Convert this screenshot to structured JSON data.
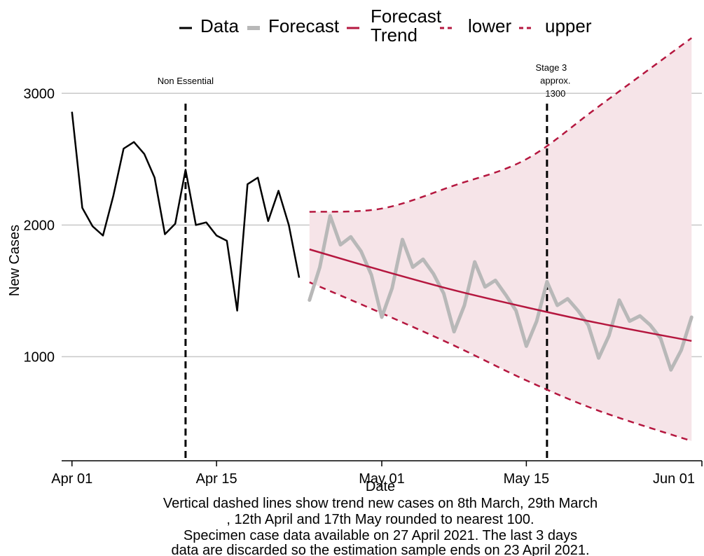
{
  "chart_data": {
    "type": "line",
    "title": "",
    "xlabel": "Date",
    "ylabel": "New Cases",
    "x_range": [
      "2021-03-31",
      "2021-06-01"
    ],
    "ylim": [
      210,
      3230
    ],
    "x_ticks": [
      {
        "date": "2021-04-01",
        "label": "Apr 01"
      },
      {
        "date": "2021-04-15",
        "label": "Apr 15"
      },
      {
        "date": "2021-05-01",
        "label": "May 01"
      },
      {
        "date": "2021-05-15",
        "label": "May 15"
      },
      {
        "date": "2021-06-01",
        "label": "Jun 01"
      }
    ],
    "y_ticks": [
      1000,
      2000,
      3000
    ],
    "grid": "horizontal",
    "legend_position": "top",
    "legend": [
      {
        "label": "Data",
        "line1": "Data",
        "line2": "",
        "style": "solid",
        "color": "#000000"
      },
      {
        "label": "Forecast",
        "line1": "Forecast",
        "line2": "",
        "style": "solid-thick",
        "color": "#b8b8b8"
      },
      {
        "label": "Forecast Trend",
        "line1": "Forecast",
        "line2": "Trend",
        "style": "solid",
        "color": "#b5173f"
      },
      {
        "label": "lower",
        "line1": "lower",
        "line2": "",
        "style": "dashed",
        "color": "#b5173f"
      },
      {
        "label": "upper",
        "line1": "upper",
        "line2": "",
        "style": "dashed",
        "color": "#b5173f"
      }
    ],
    "colors": {
      "data": "#000000",
      "forecast": "#b8b8b8",
      "trend": "#b5173f",
      "band": "#f6e4e8",
      "vline": "#000000",
      "grid": "#c8c8c8"
    },
    "vlines": [
      {
        "date": "2021-04-12",
        "label_lines": [
          "Non Essential"
        ]
      },
      {
        "date": "2021-05-17",
        "label_lines": [
          "Stage 3",
          "approx.",
          "1300"
        ]
      }
    ],
    "series": [
      {
        "name": "Data",
        "x": [
          "2021-04-01",
          "2021-04-02",
          "2021-04-03",
          "2021-04-04",
          "2021-04-05",
          "2021-04-06",
          "2021-04-07",
          "2021-04-08",
          "2021-04-09",
          "2021-04-10",
          "2021-04-11",
          "2021-04-12",
          "2021-04-13",
          "2021-04-14",
          "2021-04-15",
          "2021-04-16",
          "2021-04-17",
          "2021-04-18",
          "2021-04-19",
          "2021-04-20",
          "2021-04-21",
          "2021-04-22",
          "2021-04-23"
        ],
        "y": [
          2860,
          2130,
          1990,
          1920,
          2220,
          2580,
          2630,
          2540,
          2360,
          1930,
          2010,
          2420,
          2000,
          2020,
          1920,
          1880,
          1350,
          2310,
          2360,
          2030,
          2260,
          2000,
          1600
        ]
      },
      {
        "name": "Forecast",
        "x": [
          "2021-04-24",
          "2021-04-25",
          "2021-04-26",
          "2021-04-27",
          "2021-04-28",
          "2021-04-29",
          "2021-04-30",
          "2021-05-01",
          "2021-05-02",
          "2021-05-03",
          "2021-05-04",
          "2021-05-05",
          "2021-05-06",
          "2021-05-07",
          "2021-05-08",
          "2021-05-09",
          "2021-05-10",
          "2021-05-11",
          "2021-05-12",
          "2021-05-13",
          "2021-05-14",
          "2021-05-15",
          "2021-05-16",
          "2021-05-17",
          "2021-05-18",
          "2021-05-19",
          "2021-05-20",
          "2021-05-21",
          "2021-05-22",
          "2021-05-23",
          "2021-05-24",
          "2021-05-25",
          "2021-05-26",
          "2021-05-27",
          "2021-05-28",
          "2021-05-29",
          "2021-05-30",
          "2021-05-31"
        ],
        "y": [
          1430,
          1680,
          2070,
          1850,
          1910,
          1800,
          1620,
          1300,
          1520,
          1890,
          1680,
          1740,
          1630,
          1480,
          1190,
          1390,
          1720,
          1530,
          1580,
          1470,
          1350,
          1080,
          1270,
          1570,
          1390,
          1440,
          1350,
          1240,
          990,
          1160,
          1430,
          1270,
          1310,
          1240,
          1140,
          900,
          1050,
          1300
        ]
      },
      {
        "name": "Forecast Trend",
        "x": [
          "2021-04-24",
          "2021-05-01",
          "2021-05-08",
          "2021-05-15",
          "2021-05-22",
          "2021-05-31"
        ],
        "y": [
          1815,
          1655,
          1505,
          1375,
          1255,
          1120
        ]
      },
      {
        "name": "lower",
        "x": [
          "2021-04-24",
          "2021-05-01",
          "2021-05-08",
          "2021-05-15",
          "2021-05-22",
          "2021-05-31"
        ],
        "y": [
          1565,
          1330,
          1085,
          820,
          590,
          360
        ]
      },
      {
        "name": "upper",
        "x": [
          "2021-04-24",
          "2021-05-01",
          "2021-05-08",
          "2021-05-15",
          "2021-05-22",
          "2021-05-31"
        ],
        "y": [
          2100,
          2125,
          2300,
          2500,
          2900,
          3420
        ]
      }
    ],
    "caption_lines": [
      "Vertical dashed lines show trend new cases on 8th March, 29th March",
      ", 12th April and 17th May rounded to nearest 100.",
      "Specimen case data available on 27 April 2021. The last 3 days",
      "data are discarded so the estimation sample ends on 23 April 2021."
    ]
  }
}
